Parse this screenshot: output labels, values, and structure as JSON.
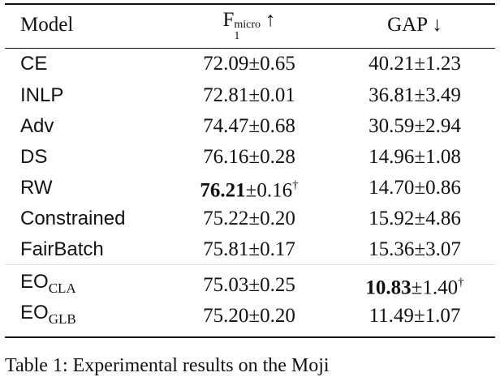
{
  "table": {
    "header": {
      "model": "Model",
      "f1": {
        "text": "F",
        "sub": "1",
        "sup": "micro",
        "arrow": "↑"
      },
      "gap": "GAP ↓"
    },
    "rows": [
      {
        "model": "CE",
        "f1": "72.09±0.65",
        "gap": "40.21±1.23"
      },
      {
        "model": "INLP",
        "f1": "72.81±0.01",
        "gap": "36.81±3.49"
      },
      {
        "model": "Adv",
        "f1": "74.47±0.68",
        "gap": "30.59±2.94"
      },
      {
        "model": "DS",
        "f1": "76.16±0.28",
        "gap": "14.96±1.08"
      },
      {
        "model": "RW",
        "f1": {
          "bold": "76.21",
          "text": "±0.16",
          "sup": "†"
        },
        "gap": "14.70±0.86"
      },
      {
        "model": "Constrained",
        "f1": "75.22±0.20",
        "gap": "15.92±4.86"
      },
      {
        "model": "FairBatch",
        "f1": "75.81±0.17",
        "gap": "15.36±3.07"
      },
      {
        "model": {
          "text": "EO",
          "sub": "CLA"
        },
        "f1": "75.03±0.25",
        "gap": {
          "bold": "10.83",
          "text": "±1.40",
          "sup": "†"
        }
      },
      {
        "model": {
          "text": "EO",
          "sub": "GLB"
        },
        "f1": "75.20±0.20",
        "gap": "11.49±1.07"
      }
    ],
    "caption": "Table 1: Experimental results on the Moji"
  }
}
